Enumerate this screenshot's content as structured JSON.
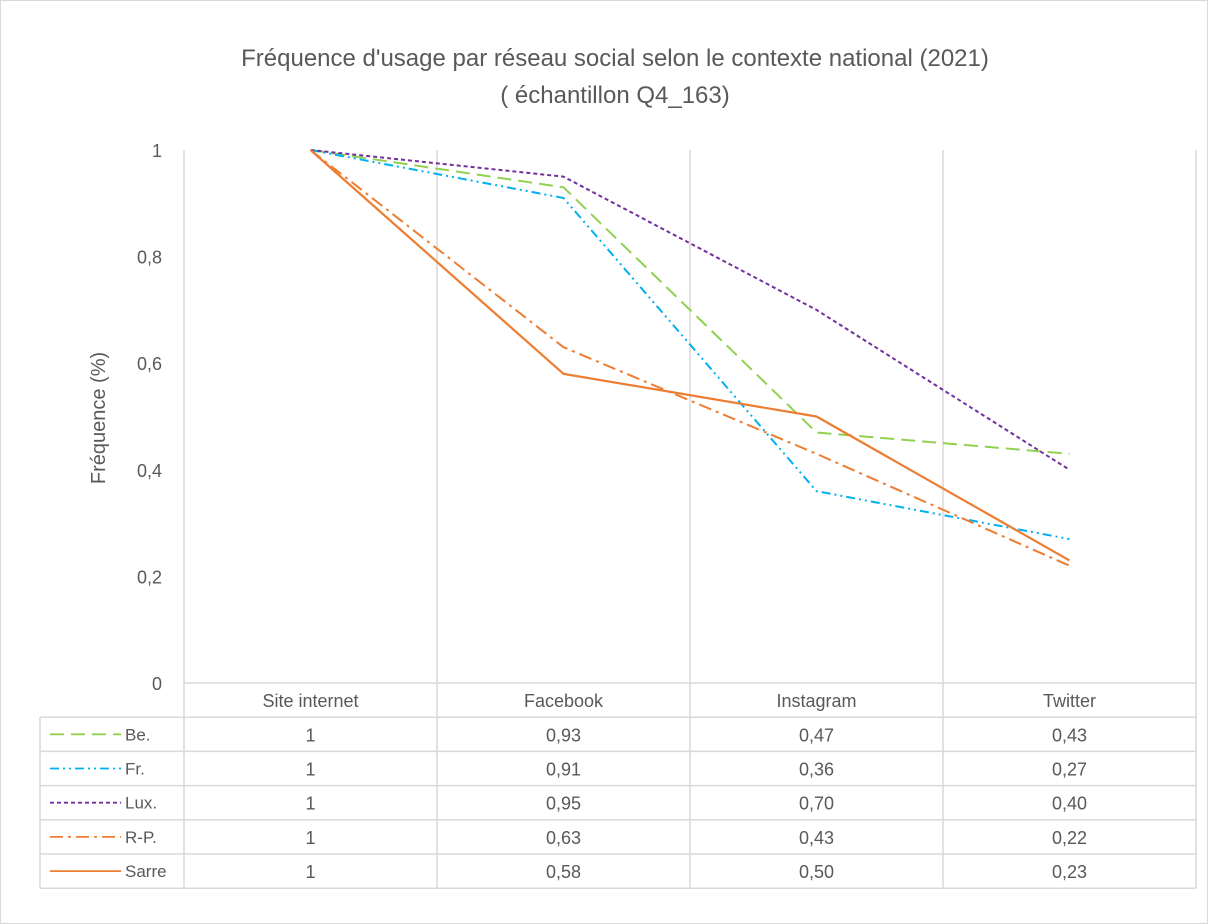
{
  "chart_data": {
    "type": "line",
    "title_line1": "Fréquence d'usage par réseau social selon le contexte national (2021)",
    "title_line2": "( échantillon Q4_163)",
    "ylabel": "Fréquence (%)",
    "xlabel": "",
    "categories": [
      "Site internet",
      "Facebook",
      "Instagram",
      "Twitter"
    ],
    "ylim": [
      0,
      1
    ],
    "y_ticks": [
      "0",
      "0,2",
      "0,4",
      "0,6",
      "0,8",
      "1"
    ],
    "grid": "vertical",
    "legend": "data-table",
    "series": [
      {
        "name": "Be.",
        "color": "#92D050",
        "dash": "long-dash",
        "values": [
          1,
          0.93,
          0.47,
          0.43
        ],
        "labels": [
          "1",
          "0,93",
          "0,47",
          "0,43"
        ]
      },
      {
        "name": "Fr.",
        "color": "#00B0F0",
        "dash": "dash-dot-dot",
        "values": [
          1,
          0.91,
          0.36,
          0.27
        ],
        "labels": [
          "1",
          "0,91",
          "0,36",
          "0,27"
        ]
      },
      {
        "name": "Lux.",
        "color": "#7030A0",
        "dash": "short-dash",
        "values": [
          1,
          0.95,
          0.7,
          0.4
        ],
        "labels": [
          "1",
          "0,95",
          "0,70",
          "0,40"
        ]
      },
      {
        "name": "R-P.",
        "color": "#ED7D31",
        "dash": "dash-dot",
        "values": [
          1,
          0.63,
          0.43,
          0.22
        ],
        "labels": [
          "1",
          "0,63",
          "0,43",
          "0,22"
        ]
      },
      {
        "name": "Sarre",
        "color": "#ED7D31",
        "dash": "solid",
        "values": [
          1,
          0.58,
          0.5,
          0.23
        ],
        "labels": [
          "1",
          "0,58",
          "0,50",
          "0,23"
        ]
      }
    ]
  }
}
